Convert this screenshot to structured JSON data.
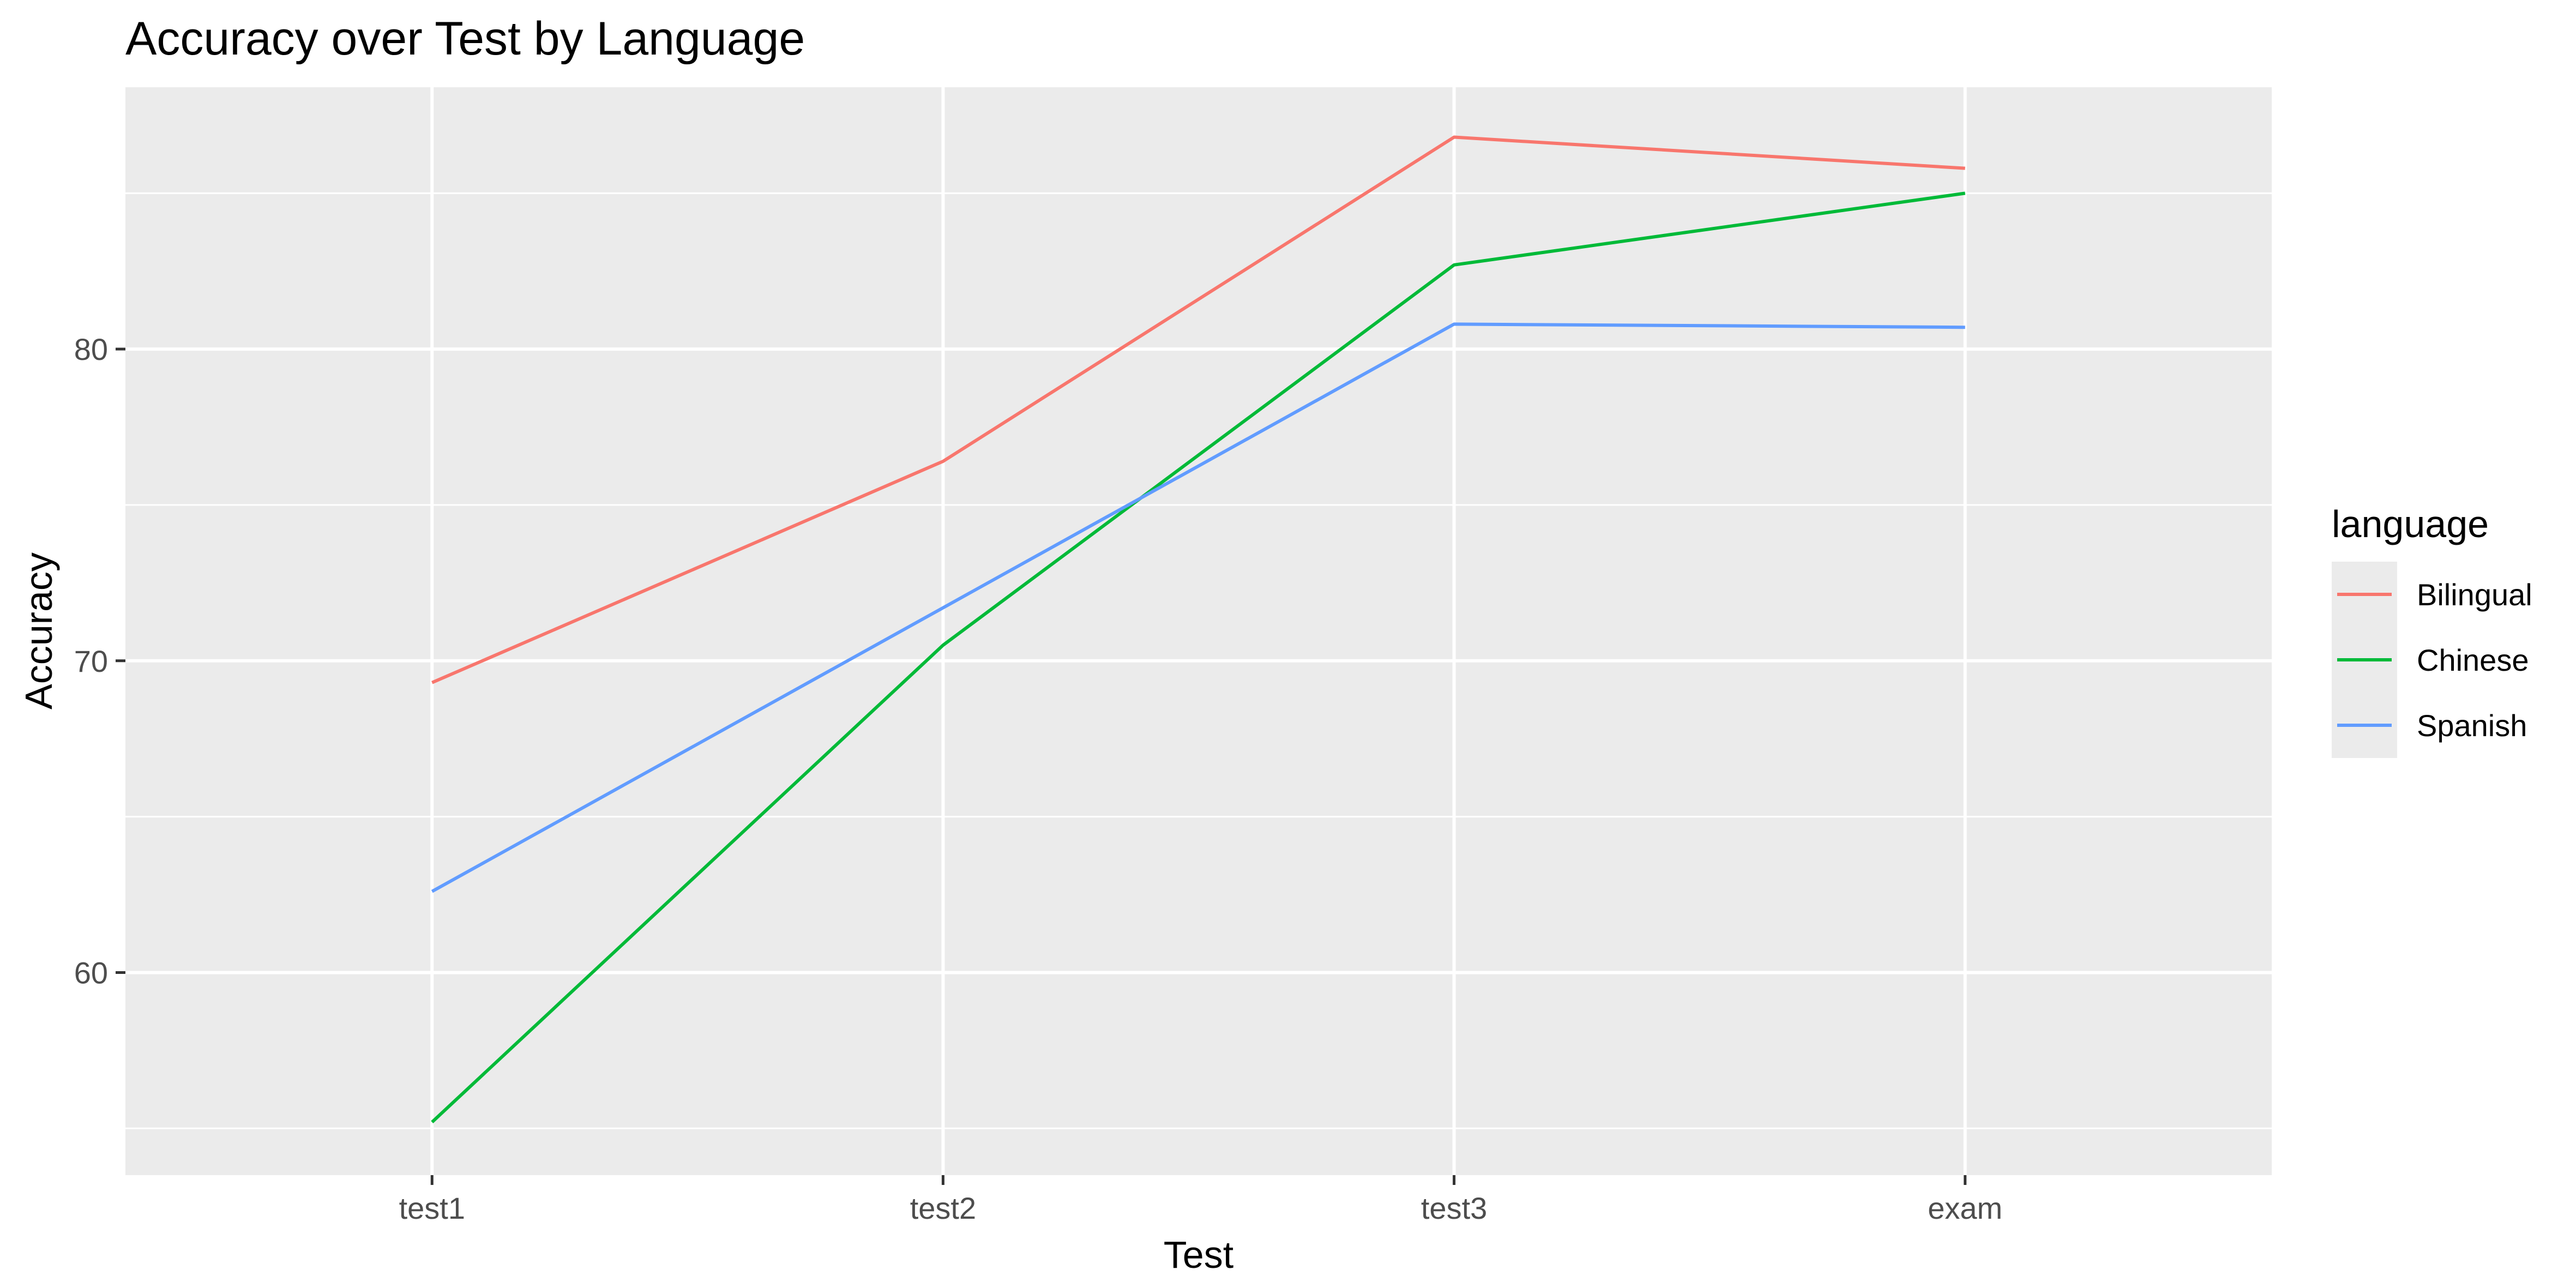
{
  "chart_data": {
    "type": "line",
    "title": "Accuracy over Test by Language",
    "xlabel": "Test",
    "ylabel": "Accuracy",
    "categories": [
      "test1",
      "test2",
      "test3",
      "exam"
    ],
    "y_ticks": [
      60,
      70,
      80
    ],
    "ylim": [
      53.5,
      88.4
    ],
    "grid": true,
    "legend": {
      "title": "language",
      "position": "right"
    },
    "series": [
      {
        "name": "Bilingual",
        "color": "#F8766D",
        "values": [
          69.3,
          76.4,
          86.8,
          85.8
        ]
      },
      {
        "name": "Chinese",
        "color": "#00BA38",
        "values": [
          55.2,
          70.5,
          82.7,
          85.0
        ]
      },
      {
        "name": "Spanish",
        "color": "#619CFF",
        "values": [
          62.6,
          71.7,
          80.8,
          80.7
        ]
      }
    ],
    "colors": {
      "panel": "#EBEBEB",
      "grid": "#FFFFFF",
      "tick": "#333333"
    }
  }
}
